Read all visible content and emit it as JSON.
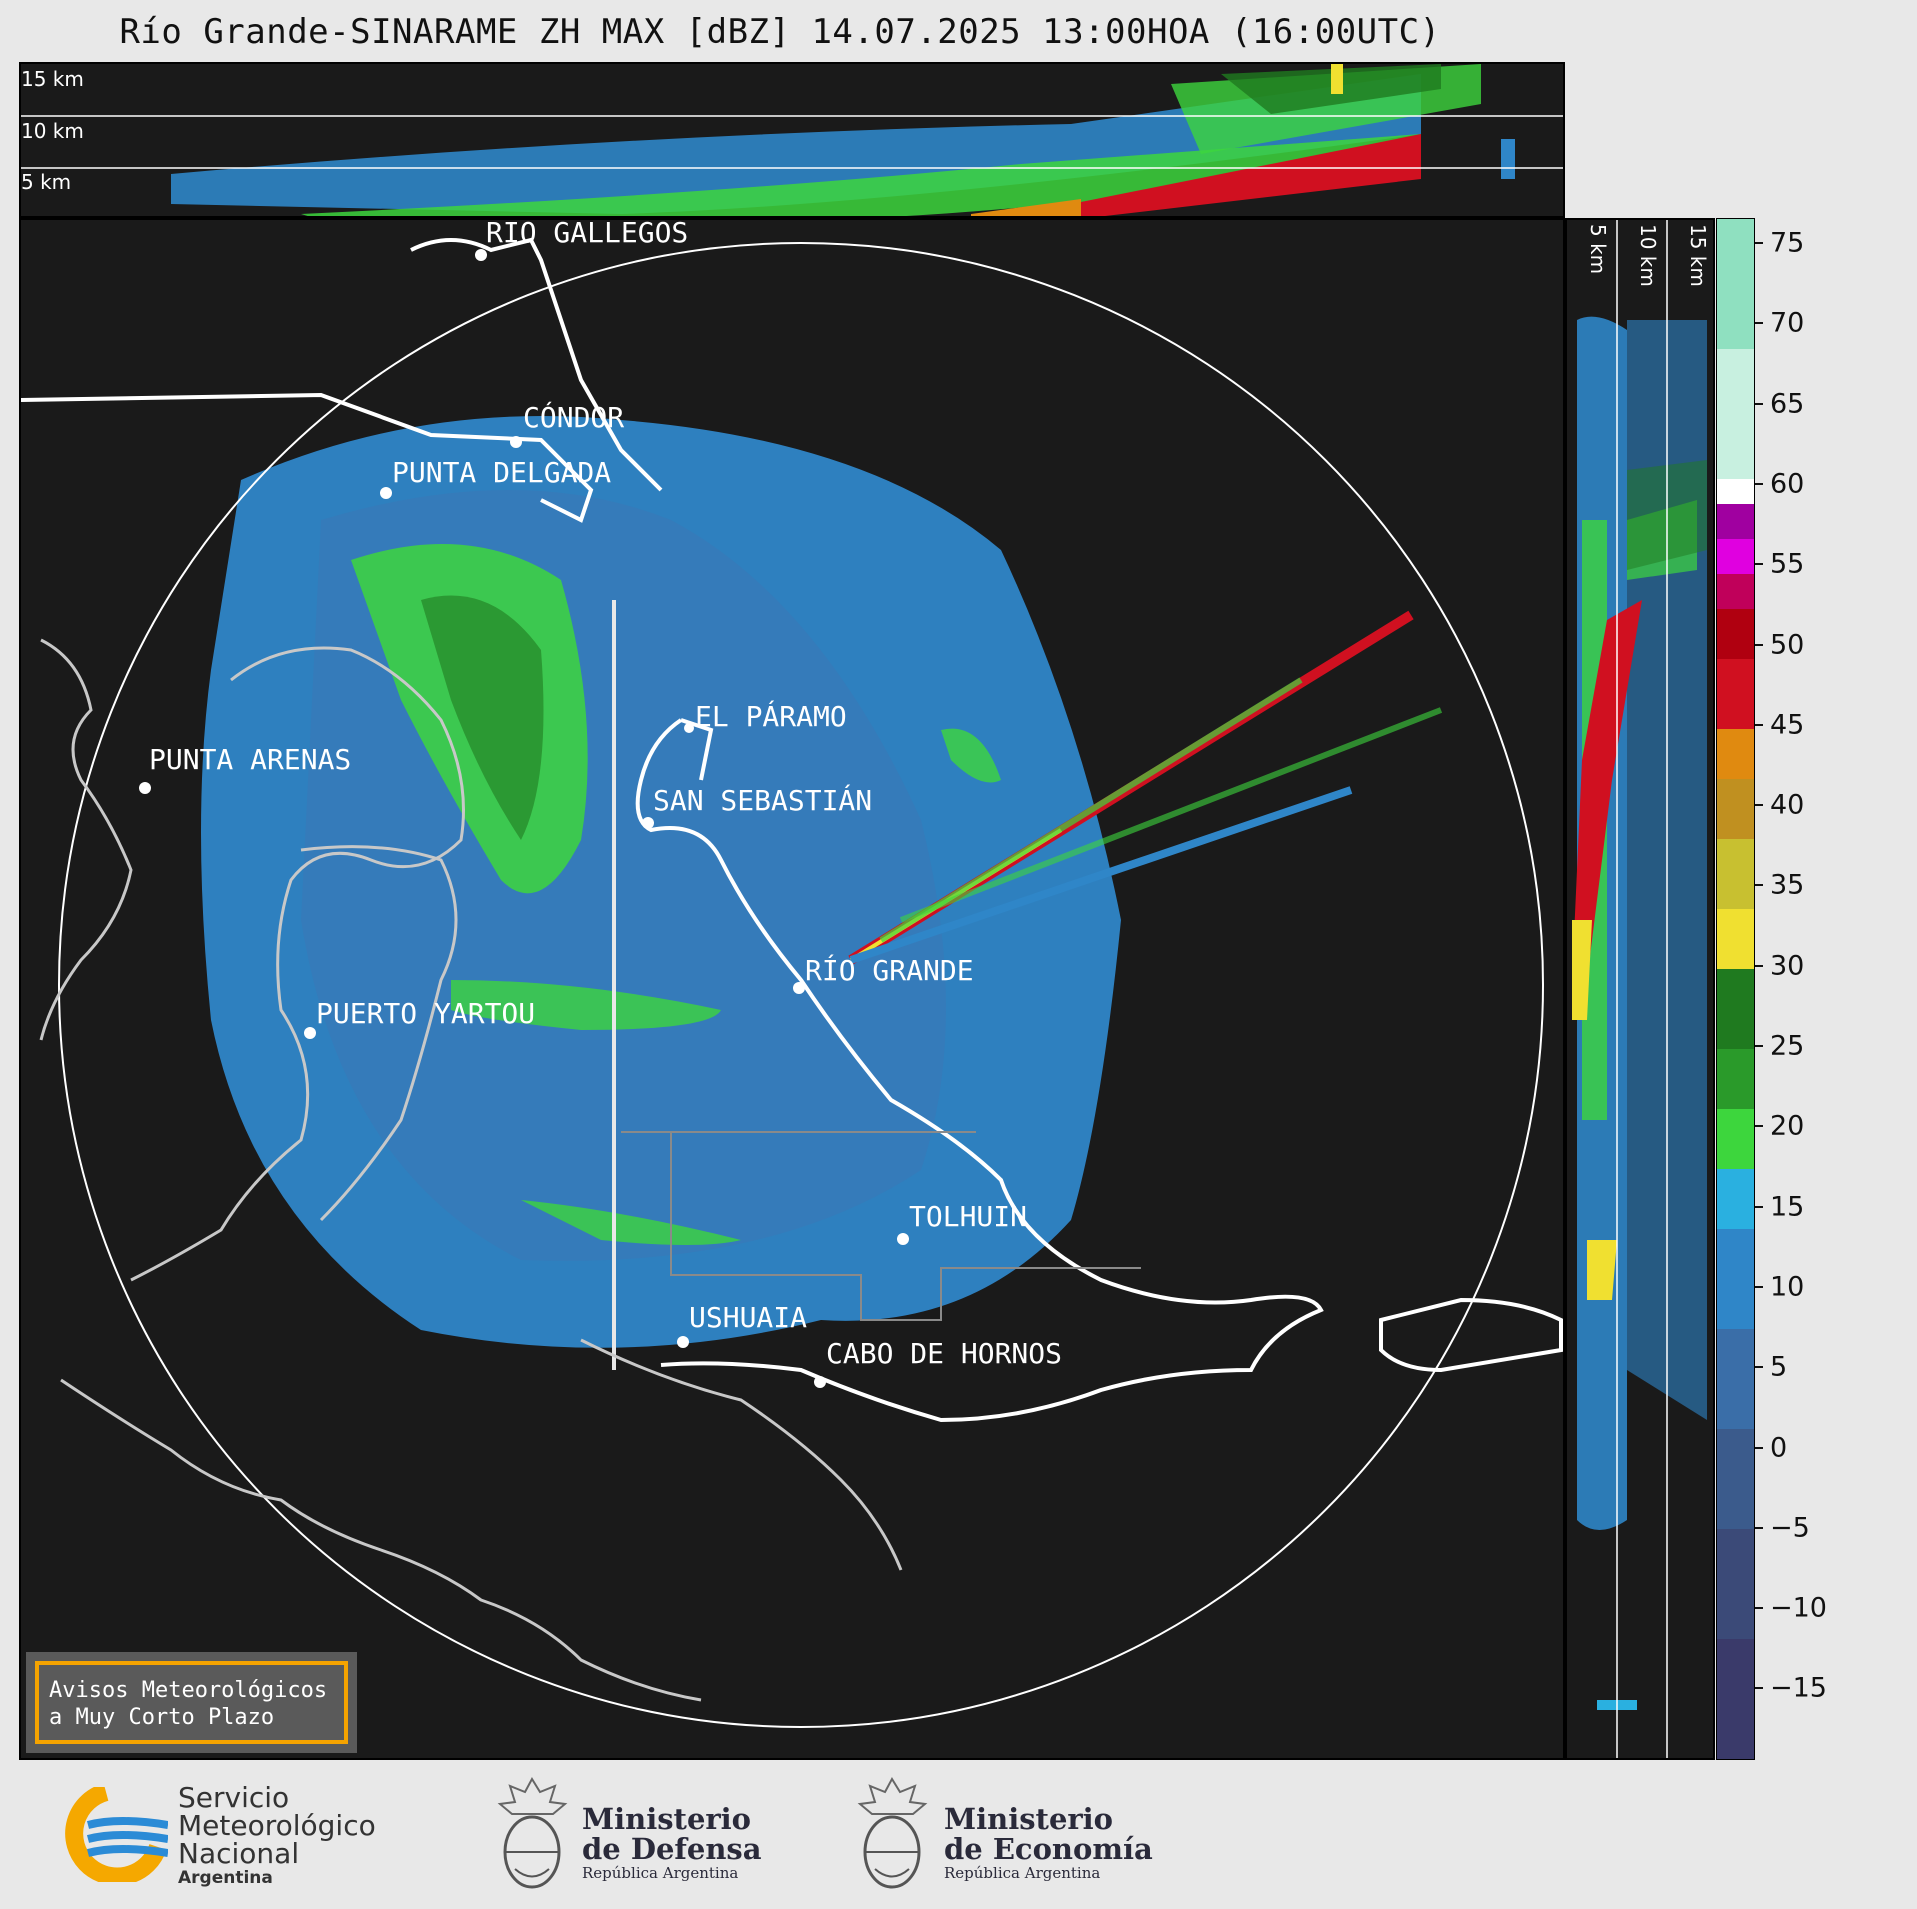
{
  "title": "Río Grande-SINARAME ZH MAX [dBZ] 14.07.2025 13:00HOA (16:00UTC)",
  "top_panel": {
    "height_labels": [
      "15 km",
      "10 km",
      "5 km"
    ]
  },
  "side_panel": {
    "height_labels": [
      "5 km",
      "10 km",
      "15 km"
    ]
  },
  "map": {
    "cities": [
      {
        "name": "RÍO GALLEGOS"
      },
      {
        "name": "CÓNDOR"
      },
      {
        "name": "PUNTA DELGADA"
      },
      {
        "name": "PUNTA ARENAS"
      },
      {
        "name": "EL PÁRAMO"
      },
      {
        "name": "SAN SEBASTIÁN"
      },
      {
        "name": "RÍO GRANDE"
      },
      {
        "name": "PUERTO YARTOU"
      },
      {
        "name": "TOLHUIN"
      },
      {
        "name": "USHUAIA"
      },
      {
        "name": "CABO DE HORNOS"
      }
    ]
  },
  "colorbar": {
    "unit": "dBZ",
    "ticks": [
      "75",
      "70",
      "65",
      "60",
      "55",
      "50",
      "45",
      "40",
      "35",
      "30",
      "25",
      "20",
      "15",
      "10",
      "5",
      "0",
      "−5",
      "−10",
      "−15"
    ],
    "range": [
      -20,
      77
    ],
    "colors": {
      "very_low": "#3a3a6a",
      "low": "#3b5b8c",
      "mid_blue": "#2f86c8",
      "light_blue": "#2ab0e0",
      "green": "#3dd63d",
      "dark_green": "#1f7a1f",
      "yellow": "#f0e030",
      "orange": "#e08a10",
      "red": "#d01020",
      "magenta": "#e000e0",
      "white": "#ffffff",
      "mint": "#8fe0c0"
    }
  },
  "avisos": {
    "line1": "Avisos Meteorológicos",
    "line2": "a Muy Corto Plazo"
  },
  "footer": {
    "smn": {
      "line1": "Servicio",
      "line2": "Meteorológico",
      "line3": "Nacional",
      "line4": "Argentina"
    },
    "defensa": {
      "line1": "Ministerio",
      "line2": "de Defensa",
      "line3": "República Argentina"
    },
    "economia": {
      "line1": "Ministerio",
      "line2": "de Economía",
      "line3": "República Argentina"
    }
  }
}
